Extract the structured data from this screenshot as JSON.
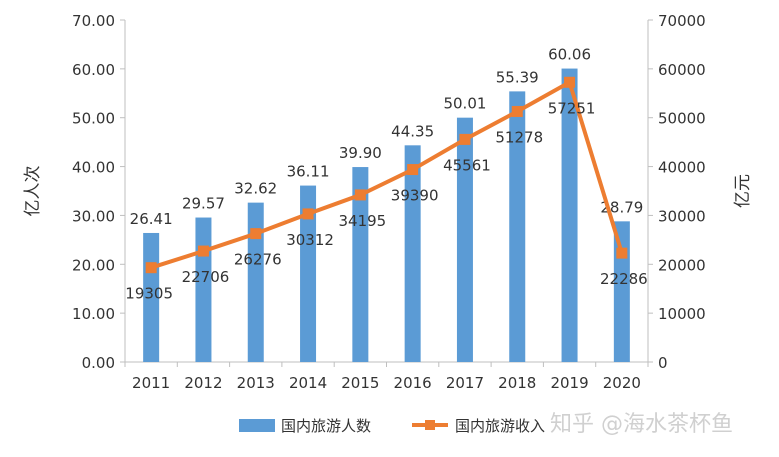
{
  "chart_data": {
    "type": "bar",
    "categories": [
      "2011",
      "2012",
      "2013",
      "2014",
      "2015",
      "2016",
      "2017",
      "2018",
      "2019",
      "2020"
    ],
    "series": [
      {
        "name": "国内旅游人数",
        "type": "bar",
        "axis": "left",
        "color": "#5b9bd5",
        "values": [
          26.41,
          29.57,
          32.62,
          36.11,
          39.9,
          44.35,
          50.01,
          55.39,
          60.06,
          28.79
        ],
        "labels": [
          "26.41",
          "29.57",
          "32.62",
          "36.11",
          "39.90",
          "44.35",
          "50.01",
          "55.39",
          "60.06",
          "28.79"
        ]
      },
      {
        "name": "国内旅游收入",
        "type": "line",
        "axis": "right",
        "color": "#ed7d31",
        "values": [
          19305,
          22706,
          26276,
          30312,
          34195,
          39390,
          45561,
          51278,
          57251,
          22286
        ],
        "labels": [
          "19305",
          "22706",
          "26276",
          "30312",
          "34195",
          "39390",
          "45561",
          "51278",
          "57251",
          "22286"
        ]
      }
    ],
    "ylabel": "亿人次",
    "y2label": "亿元",
    "ylim": [
      0,
      70
    ],
    "y2lim": [
      0,
      70000
    ],
    "yticks": [
      "0.00",
      "10.00",
      "20.00",
      "30.00",
      "40.00",
      "50.00",
      "60.00",
      "70.00"
    ],
    "y2ticks": [
      "0",
      "10000",
      "20000",
      "30000",
      "40000",
      "50000",
      "60000",
      "70000"
    ],
    "grid": false,
    "legend": "bottom"
  },
  "watermark": {
    "text": "知乎 @海水茶杯鱼"
  }
}
